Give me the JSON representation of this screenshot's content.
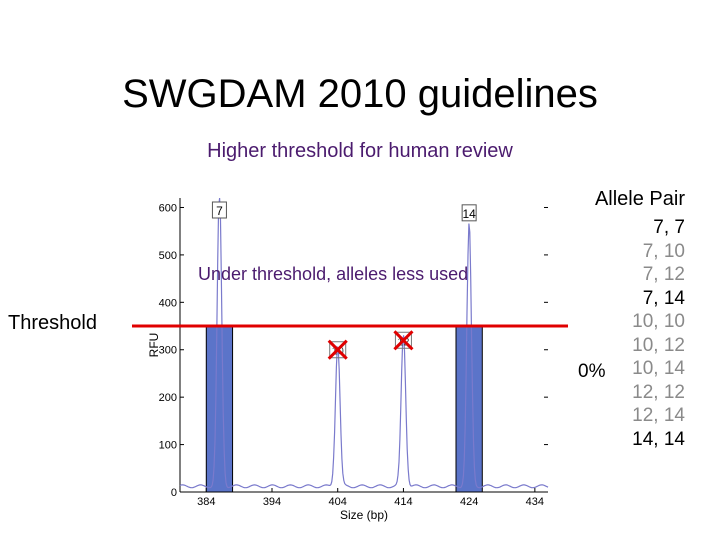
{
  "slide": {
    "title": "SWGDAM 2010 guidelines",
    "subtitle": "Higher threshold for human review",
    "threshold_label": "Threshold",
    "under_threshold_label": "Under threshold, alleles less used",
    "percent_label": "0%"
  },
  "allele_pairs": {
    "header": "Allele Pair",
    "items": [
      {
        "label": "7,  7",
        "color": "#000000"
      },
      {
        "label": "7, 10",
        "color": "#8a8a8a"
      },
      {
        "label": "7, 12",
        "color": "#8a8a8a"
      },
      {
        "label": "7, 14",
        "color": "#000000"
      },
      {
        "label": "10, 10",
        "color": "#8a8a8a"
      },
      {
        "label": "10, 12",
        "color": "#8a8a8a"
      },
      {
        "label": "10, 14",
        "color": "#8a8a8a"
      },
      {
        "label": "12, 12",
        "color": "#8a8a8a"
      },
      {
        "label": "12, 14",
        "color": "#8a8a8a"
      },
      {
        "label": "14, 14",
        "color": "#000000"
      }
    ]
  },
  "colors": {
    "threshold_line": "#e00000",
    "bar_fill": "#5b74c9",
    "bar_stroke": "#000000",
    "trace": "#7a7acc",
    "x_mark": "#e00000"
  },
  "chart_data": {
    "type": "line",
    "xlabel": "Size (bp)",
    "ylabel": "RFU",
    "xlim": [
      380,
      436
    ],
    "ylim": [
      0,
      620
    ],
    "xticks": [
      384,
      394,
      404,
      414,
      424,
      434
    ],
    "yticks": [
      0,
      100,
      200,
      300,
      400,
      500,
      600
    ],
    "threshold": 350,
    "peaks": [
      {
        "label": "7",
        "x": 386,
        "height": 620,
        "excluded": false
      },
      {
        "label": "10",
        "x": 404,
        "height": 300,
        "excluded": true
      },
      {
        "label": "12",
        "x": 414,
        "height": 320,
        "excluded": true
      },
      {
        "label": "14",
        "x": 424,
        "height": 555,
        "excluded": false
      }
    ],
    "bars": [
      {
        "x_start": 384,
        "x_end": 388,
        "value": 350
      },
      {
        "x_start": 422,
        "x_end": 426,
        "value": 350
      }
    ]
  }
}
